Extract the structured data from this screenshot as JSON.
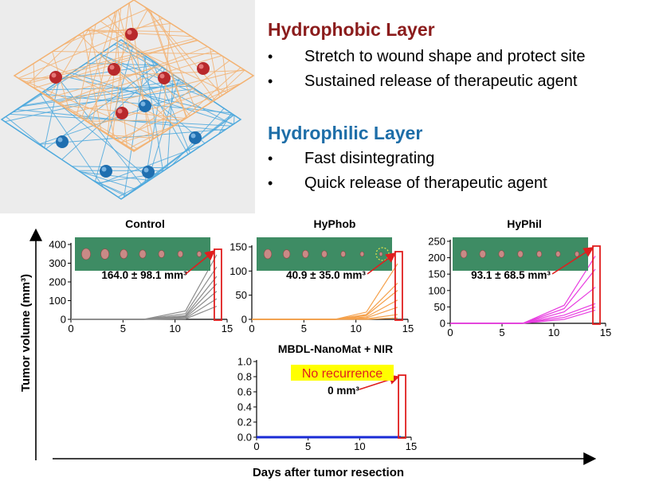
{
  "hydrophobic": {
    "title": "Hydrophobic Layer",
    "items": [
      "Stretch to wound shape and protect site",
      "Sustained release of therapeutic agent"
    ]
  },
  "hydrophilic": {
    "title": "Hydrophilic Layer",
    "items": [
      "Fast disintegrating",
      "Quick release of therapeutic agent"
    ]
  },
  "bullet": "•",
  "colors": {
    "hydrophobic": "#8b1c1c",
    "hydrophilic": "#1e6ea8",
    "photo_bg": "#3e8c64",
    "box": "#e01e1e",
    "callout_highlight": "#ffff00"
  },
  "icons": [
    "hydrophobic-fiber-mesh",
    "hydrophilic-fiber-mesh",
    "red-particle",
    "blue-particle"
  ],
  "chart_data": {
    "ylabel": "Tumor volume (mm³)",
    "xlabel": "Days after tumor resection",
    "panels": [
      {
        "type": "line",
        "title": "Control",
        "color": "#8c8c8c",
        "xlim": [
          0,
          15
        ],
        "xticks": [
          0,
          5,
          10,
          15
        ],
        "ylim": [
          0,
          400
        ],
        "yticks": [
          0,
          100,
          200,
          300,
          400
        ],
        "x": [
          0,
          7,
          11,
          14
        ],
        "series": [
          {
            "values": [
              0,
              0,
              45,
              345
            ]
          },
          {
            "values": [
              0,
              0,
              30,
              280
            ]
          },
          {
            "values": [
              0,
              0,
              20,
              230
            ]
          },
          {
            "values": [
              0,
              0,
              15,
              190
            ]
          },
          {
            "values": [
              0,
              0,
              10,
              150
            ]
          },
          {
            "values": [
              0,
              0,
              5,
              110
            ]
          },
          {
            "values": [
              0,
              0,
              2,
              70
            ]
          }
        ],
        "annotation": "164.0 ± 98.1 mm³"
      },
      {
        "type": "line",
        "title": "HyPhob",
        "color": "#f5a04a",
        "xlim": [
          0,
          15
        ],
        "xticks": [
          0,
          5,
          10,
          15
        ],
        "ylim": [
          0,
          150
        ],
        "yticks": [
          0,
          50,
          100,
          150
        ],
        "x": [
          0,
          8,
          11,
          14
        ],
        "series": [
          {
            "values": [
              0,
              0,
              15,
              115
            ]
          },
          {
            "values": [
              0,
              0,
              10,
              75
            ]
          },
          {
            "values": [
              0,
              0,
              8,
              60
            ]
          },
          {
            "values": [
              0,
              0,
              5,
              40
            ]
          },
          {
            "values": [
              0,
              0,
              3,
              25
            ]
          },
          {
            "values": [
              0,
              0,
              1,
              10
            ]
          },
          {
            "values": [
              0,
              0,
              0,
              3
            ]
          }
        ],
        "annotation": "40.9 ± 35.0 mm³"
      },
      {
        "type": "line",
        "title": "HyPhil",
        "color": "#e83ce0",
        "xlim": [
          0,
          15
        ],
        "xticks": [
          0,
          5,
          10,
          15
        ],
        "ylim": [
          0,
          250
        ],
        "yticks": [
          0,
          50,
          100,
          150,
          200,
          250
        ],
        "x": [
          0,
          7,
          11,
          14
        ],
        "series": [
          {
            "values": [
              0,
              0,
              55,
              205
            ]
          },
          {
            "values": [
              0,
              0,
              45,
              165
            ]
          },
          {
            "values": [
              0,
              0,
              35,
              110
            ]
          },
          {
            "values": [
              0,
              0,
              25,
              60
            ]
          },
          {
            "values": [
              0,
              0,
              18,
              50
            ]
          },
          {
            "values": [
              0,
              0,
              12,
              40
            ]
          }
        ],
        "annotation": "93.1 ± 68.5 mm³"
      },
      {
        "type": "line",
        "title": "MBDL-NanoMat + NIR",
        "color": "#1a2bd6",
        "xlim": [
          0,
          15
        ],
        "xticks": [
          0,
          5,
          10,
          15
        ],
        "ylim": [
          0,
          1.0
        ],
        "yticks": [
          0.0,
          0.2,
          0.4,
          0.6,
          0.8,
          1.0
        ],
        "x": [
          0,
          14
        ],
        "series": [
          {
            "values": [
              0,
              0
            ]
          }
        ],
        "annotation": "0 mm³",
        "callout": "No recurrence"
      }
    ]
  }
}
